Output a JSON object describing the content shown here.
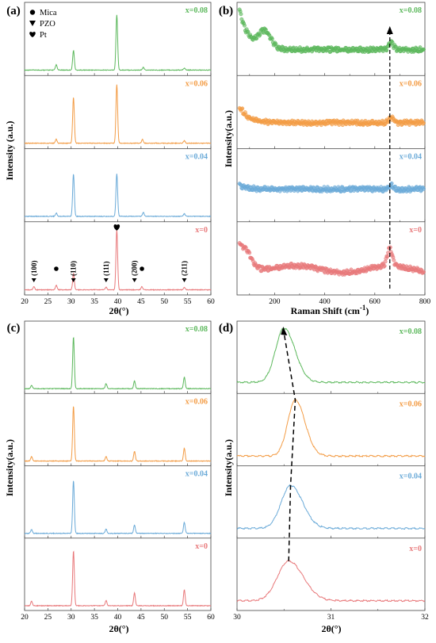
{
  "colors": {
    "green": "#5cb85c",
    "orange": "#f39c45",
    "blue": "#6aaad8",
    "red": "#e8787a"
  },
  "chart_data": [
    {
      "id": "a",
      "panel_label": "(a)",
      "type": "line",
      "xlabel": "2θ(°)",
      "ylabel": "Intensity (a.u.)",
      "xlim": [
        20,
        60
      ],
      "xticks": [
        20,
        25,
        30,
        35,
        40,
        45,
        50,
        55,
        60
      ],
      "legend": {
        "items": [
          {
            "marker": "circle",
            "label": "Mica"
          },
          {
            "marker": "triangle-down",
            "label": "PZO"
          },
          {
            "marker": "heart",
            "label": "Pt"
          }
        ],
        "placement": "top-left"
      },
      "annotations": {
        "labels": [
          {
            "text": "(100)",
            "x": 22
          },
          {
            "text": "(110)",
            "x": 30.5
          },
          {
            "text": "(111)",
            "x": 37.5
          },
          {
            "text": "(200)",
            "x": 43.6
          },
          {
            "text": "(211)",
            "x": 54.3
          }
        ],
        "mica_peaks": [
          26.8,
          45.2
        ],
        "pt_peak": 39.8
      },
      "series": [
        {
          "name": "x=0.08",
          "color": "green",
          "baseline": 0.12,
          "peaks": [
            [
              26.8,
              0.08
            ],
            [
              30.5,
              0.3
            ],
            [
              39.8,
              0.85
            ],
            [
              45.5,
              0.04
            ],
            [
              54.3,
              0.03
            ]
          ]
        },
        {
          "name": "x=0.06",
          "color": "orange",
          "baseline": 0.12,
          "peaks": [
            [
              26.8,
              0.06
            ],
            [
              30.5,
              0.7
            ],
            [
              39.8,
              0.9
            ],
            [
              45.3,
              0.06
            ],
            [
              54.3,
              0.04
            ]
          ]
        },
        {
          "name": "x=0.04",
          "color": "blue",
          "baseline": 0.12,
          "peaks": [
            [
              26.8,
              0.05
            ],
            [
              30.5,
              0.65
            ],
            [
              39.8,
              0.65
            ],
            [
              45.5,
              0.06
            ],
            [
              54.3,
              0.04
            ]
          ]
        },
        {
          "name": "x=0",
          "color": "red",
          "baseline": 0.1,
          "peaks": [
            [
              22.0,
              0.05
            ],
            [
              26.8,
              0.07
            ],
            [
              30.5,
              0.25
            ],
            [
              37.5,
              0.04
            ],
            [
              39.8,
              0.92
            ],
            [
              45.2,
              0.05
            ],
            [
              54.3,
              0.04
            ]
          ]
        }
      ]
    },
    {
      "id": "b",
      "panel_label": "(b)",
      "type": "scatter",
      "xlabel": "Raman Shift (cm⁻¹)",
      "ylabel": "Intensity(a.u.)",
      "xlim": [
        50,
        800
      ],
      "xticks": [
        200,
        400,
        600,
        800
      ],
      "arrow": {
        "x": 660,
        "direction": "up"
      },
      "series": [
        {
          "name": "x=0.08",
          "color": "green",
          "start": 0.95,
          "level": 0.35,
          "bump": [
            665,
            0.1
          ]
        },
        {
          "name": "x=0.06",
          "color": "orange",
          "start": 0.6,
          "level": 0.35,
          "bump": [
            665,
            0.08
          ]
        },
        {
          "name": "x=0.04",
          "color": "blue",
          "start": 0.5,
          "level": 0.45,
          "bump": [
            665,
            0.06
          ]
        },
        {
          "name": "x=0",
          "color": "red",
          "start": 0.75,
          "level": 0.35,
          "bump": [
            660,
            0.25
          ]
        }
      ]
    },
    {
      "id": "c",
      "panel_label": "(c)",
      "type": "line",
      "xlabel": "2θ(°)",
      "ylabel": "Intensity(a.u.)",
      "xlim": [
        20,
        60
      ],
      "xticks": [
        20,
        25,
        30,
        35,
        40,
        45,
        50,
        55,
        60
      ],
      "series": [
        {
          "name": "x=0.08",
          "color": "green",
          "baseline": 0.08,
          "peaks": [
            [
              21.5,
              0.05
            ],
            [
              30.5,
              0.8
            ],
            [
              37.5,
              0.08
            ],
            [
              43.6,
              0.12
            ],
            [
              54.3,
              0.18
            ]
          ]
        },
        {
          "name": "x=0.06",
          "color": "orange",
          "baseline": 0.08,
          "peaks": [
            [
              21.5,
              0.07
            ],
            [
              30.5,
              0.85
            ],
            [
              37.5,
              0.07
            ],
            [
              43.6,
              0.15
            ],
            [
              54.3,
              0.2
            ]
          ]
        },
        {
          "name": "x=0.04",
          "color": "blue",
          "baseline": 0.08,
          "peaks": [
            [
              21.5,
              0.06
            ],
            [
              30.5,
              0.82
            ],
            [
              37.5,
              0.07
            ],
            [
              43.6,
              0.13
            ],
            [
              54.3,
              0.17
            ]
          ]
        },
        {
          "name": "x=0",
          "color": "red",
          "baseline": 0.08,
          "peaks": [
            [
              21.5,
              0.07
            ],
            [
              30.5,
              0.85
            ],
            [
              37.5,
              0.08
            ],
            [
              43.6,
              0.2
            ],
            [
              54.3,
              0.25
            ]
          ]
        }
      ]
    },
    {
      "id": "d",
      "panel_label": "(d)",
      "type": "line",
      "xlabel": "2θ(°)",
      "ylabel": "Intensity(a.u.)",
      "xlim": [
        30,
        32
      ],
      "xticks": [
        30,
        31,
        32
      ],
      "arrow": {
        "points": [
          [
            30.53,
            0.0
          ],
          [
            30.55,
            1.0
          ],
          [
            30.62,
            2.0
          ],
          [
            30.5,
            3.0
          ]
        ]
      },
      "series": [
        {
          "name": "x=0.08",
          "color": "green",
          "baseline": 0.12,
          "peak": [
            30.5,
            0.82,
            0.09
          ]
        },
        {
          "name": "x=0.06",
          "color": "orange",
          "baseline": 0.1,
          "peak": [
            30.62,
            0.85,
            0.08
          ]
        },
        {
          "name": "x=0.04",
          "color": "blue",
          "baseline": 0.1,
          "peak": [
            30.57,
            0.65,
            0.1
          ]
        },
        {
          "name": "x=0",
          "color": "red",
          "baseline": 0.1,
          "peak": [
            30.55,
            0.6,
            0.12
          ]
        }
      ]
    }
  ]
}
